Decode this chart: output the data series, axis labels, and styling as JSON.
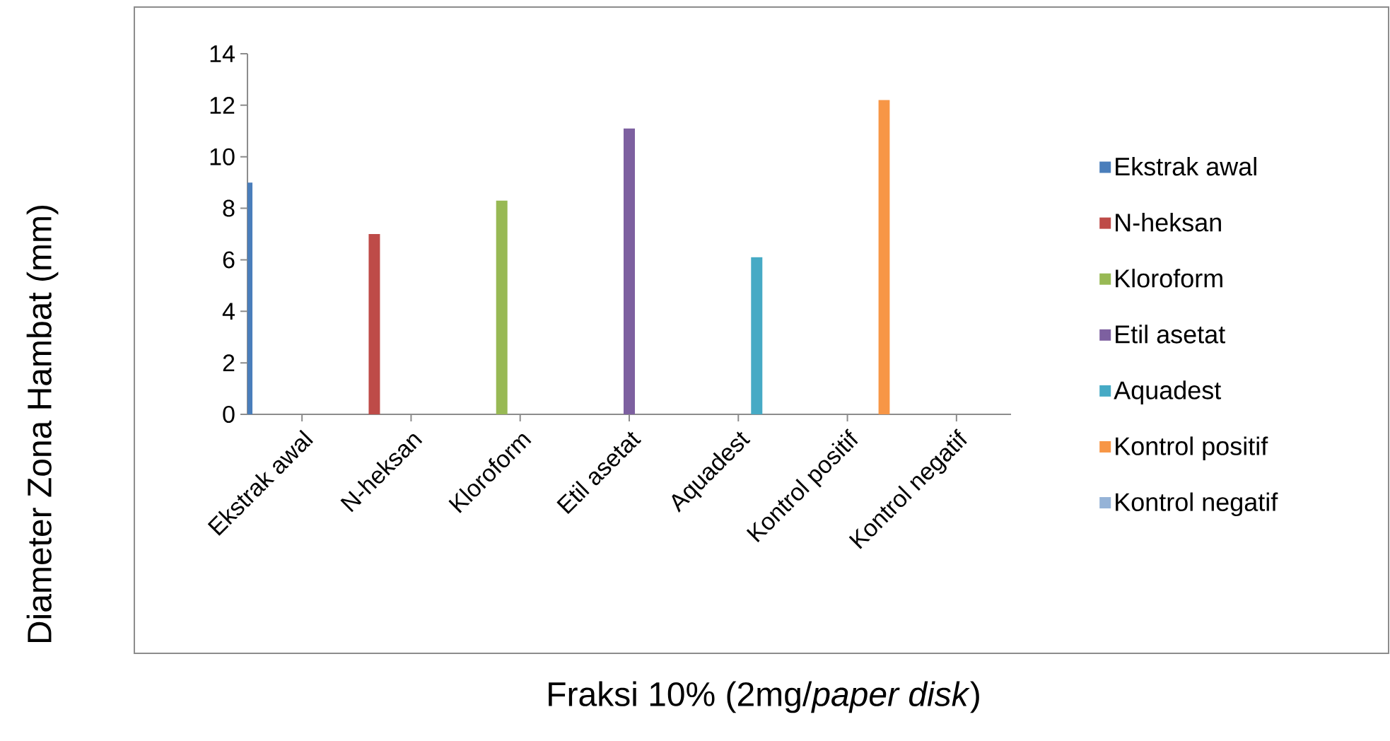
{
  "chart_data": {
    "type": "bar",
    "xlabel": "Fraksi  10% (2mg/*paper disk*)",
    "ylabel": "Diameter Zona Hambat (mm)",
    "categories": [
      "Ekstrak awal",
      "N-heksan",
      "Kloroform",
      "Etil asetat",
      "Aquadest",
      "Kontrol positif",
      "Kontrol negatif"
    ],
    "series": [
      {
        "name": "Ekstrak awal",
        "color": "#4a7ebb",
        "values": [
          9.0,
          null,
          null,
          null,
          null,
          null,
          null
        ]
      },
      {
        "name": "N-heksan",
        "color": "#be4b48",
        "values": [
          null,
          7.0,
          null,
          null,
          null,
          null,
          null
        ]
      },
      {
        "name": "Kloroform",
        "color": "#98b954",
        "values": [
          null,
          null,
          8.3,
          null,
          null,
          null,
          null
        ]
      },
      {
        "name": "Etil asetat",
        "color": "#7d60a0",
        "values": [
          null,
          null,
          null,
          11.1,
          null,
          null,
          null
        ]
      },
      {
        "name": "Aquadest",
        "color": "#46aac5",
        "values": [
          null,
          null,
          null,
          null,
          6.1,
          null,
          null
        ]
      },
      {
        "name": "Kontrol positif",
        "color": "#f79646",
        "values": [
          null,
          null,
          null,
          null,
          null,
          12.2,
          null
        ]
      },
      {
        "name": "Kontrol negatif",
        "color": "#95b3d7",
        "values": [
          null,
          null,
          null,
          null,
          null,
          null,
          0
        ]
      }
    ],
    "ylim": [
      0,
      14
    ],
    "yticks": [
      0,
      2,
      4,
      6,
      8,
      10,
      12,
      14
    ],
    "grid": false,
    "legend": "right"
  }
}
